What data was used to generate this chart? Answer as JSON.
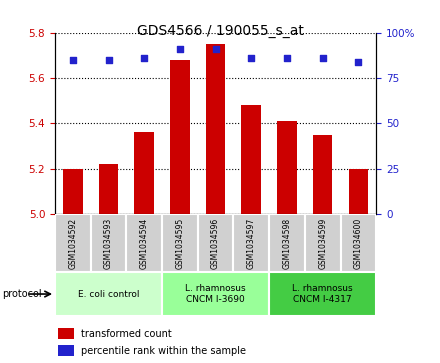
{
  "title": "GDS4566 / 190055_s_at",
  "samples": [
    "GSM1034592",
    "GSM1034593",
    "GSM1034594",
    "GSM1034595",
    "GSM1034596",
    "GSM1034597",
    "GSM1034598",
    "GSM1034599",
    "GSM1034600"
  ],
  "bar_values": [
    5.2,
    5.22,
    5.36,
    5.68,
    5.75,
    5.48,
    5.41,
    5.35,
    5.2
  ],
  "percentile_values": [
    85,
    85,
    86,
    91,
    91,
    86,
    86,
    86,
    84
  ],
  "bar_color": "#cc0000",
  "dot_color": "#2222cc",
  "ylim_left": [
    5.0,
    5.8
  ],
  "ylim_right": [
    0,
    100
  ],
  "yticks_left": [
    5.0,
    5.2,
    5.4,
    5.6,
    5.8
  ],
  "yticks_right": [
    0,
    25,
    50,
    75,
    100
  ],
  "protocol_groups": [
    {
      "label": "E. coli control",
      "start": 0,
      "end": 3,
      "color": "#ccffcc"
    },
    {
      "label": "L. rhamnosus\nCNCM I-3690",
      "start": 3,
      "end": 6,
      "color": "#99ff99"
    },
    {
      "label": "L. rhamnosus\nCNCM I-4317",
      "start": 6,
      "end": 9,
      "color": "#44cc44"
    }
  ],
  "legend_bar_label": "transformed count",
  "legend_dot_label": "percentile rank within the sample",
  "bar_width": 0.55,
  "tick_color_left": "#cc0000",
  "tick_color_right": "#2222cc",
  "sample_box_color": "#d0d0d0",
  "box_edge_color": "#ffffff"
}
